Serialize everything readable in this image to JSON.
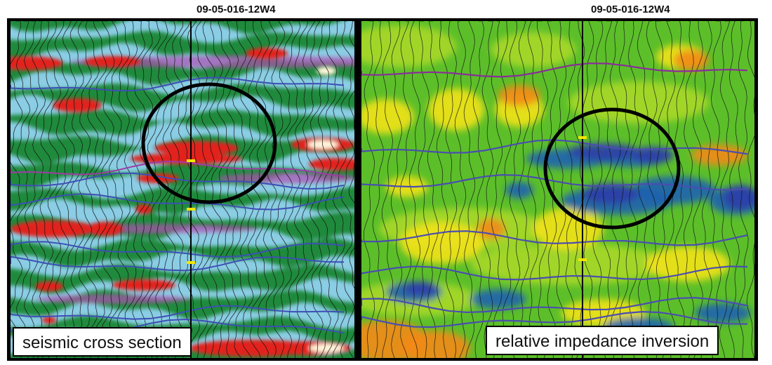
{
  "panels": [
    {
      "well_label": "09-05-016-12W4",
      "caption": "seismic cross section",
      "colors": {
        "background": "#1f8a3c",
        "trough": "#8fd1ee",
        "strong_trough": "#b14fb3",
        "peak": "#e2231a",
        "highlight": "#fff6dc",
        "wiggle": "#111111",
        "horizon": "#3d4fb5",
        "well": "#000000",
        "marker": "#f2e600"
      }
    },
    {
      "well_label": "09-05-016-12W4",
      "caption": "relative impedance inversion",
      "colors": {
        "background": "#5cbf2a",
        "mid": "#a8d828",
        "high": "#f2e21a",
        "very_high": "#f28a1a",
        "low": "#1f62b0",
        "very_low": "#2d3ea8",
        "wiggle": "#111111",
        "horizon": "#4b4db0",
        "top_horizon": "#8a2d9a",
        "well": "#000000",
        "marker": "#f2e600"
      }
    }
  ]
}
